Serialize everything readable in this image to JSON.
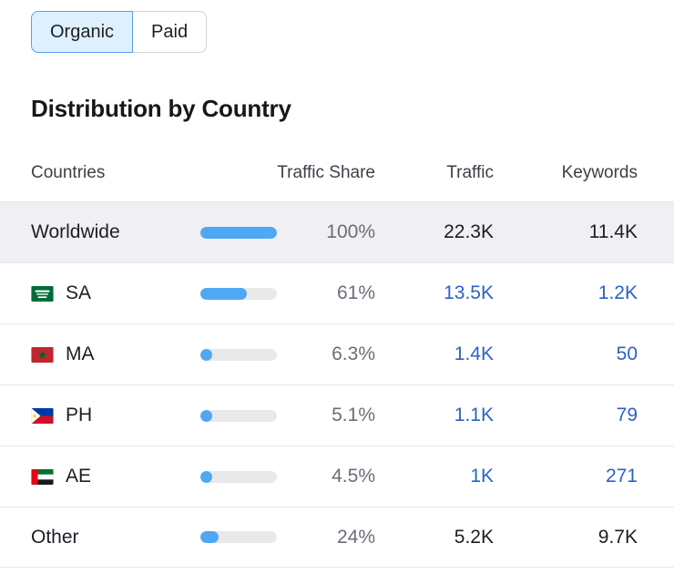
{
  "toggle": {
    "organic_label": "Organic",
    "paid_label": "Paid",
    "selected": "Organic"
  },
  "section": {
    "title": "Distribution by Country"
  },
  "table": {
    "headers": {
      "countries": "Countries",
      "traffic_share": "Traffic Share",
      "traffic": "Traffic",
      "keywords": "Keywords"
    },
    "rows": [
      {
        "name": "Worldwide",
        "flag_icon": null,
        "share_pct": 100,
        "share": "100%",
        "traffic": "22.3K",
        "keywords": "11.4K",
        "highlighted": true,
        "values_are_links": false
      },
      {
        "name": "SA",
        "flag_icon": "saudi-arabia-flag-icon",
        "share_pct": 61,
        "share": "61%",
        "traffic": "13.5K",
        "keywords": "1.2K",
        "highlighted": false,
        "values_are_links": true
      },
      {
        "name": "MA",
        "flag_icon": "morocco-flag-icon",
        "share_pct": 6.3,
        "share": "6.3%",
        "traffic": "1.4K",
        "keywords": "50",
        "highlighted": false,
        "values_are_links": true
      },
      {
        "name": "PH",
        "flag_icon": "philippines-flag-icon",
        "share_pct": 5.1,
        "share": "5.1%",
        "traffic": "1.1K",
        "keywords": "79",
        "highlighted": false,
        "values_are_links": true
      },
      {
        "name": "AE",
        "flag_icon": "uae-flag-icon",
        "share_pct": 4.5,
        "share": "4.5%",
        "traffic": "1K",
        "keywords": "271",
        "highlighted": false,
        "values_are_links": true
      },
      {
        "name": "Other",
        "flag_icon": null,
        "share_pct": 24,
        "share": "24%",
        "traffic": "5.2K",
        "keywords": "9.7K",
        "highlighted": false,
        "values_are_links": false
      }
    ]
  },
  "colors": {
    "bar_fill": "#4fa8f3",
    "bar_track": "#e9e9ec",
    "link": "#2b62c9",
    "selected_tab_bg": "#def0fe",
    "selected_tab_border": "#56a1f3",
    "highlight_row_bg": "#f0f0f4"
  }
}
